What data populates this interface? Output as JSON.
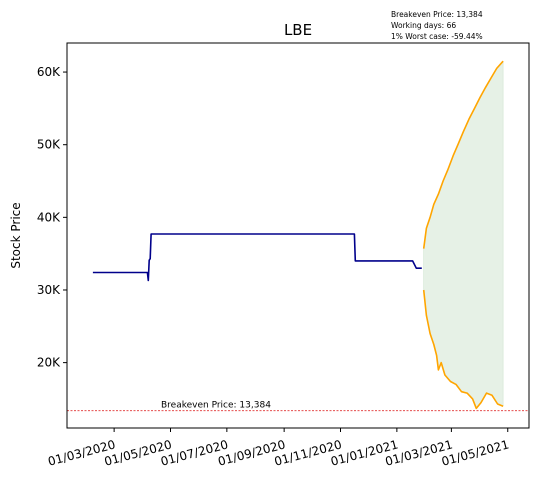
{
  "chart_data": {
    "type": "line",
    "title": "LBE",
    "ylabel": "Stock Price",
    "xlabel": "",
    "annotation_lines": [
      "Breakeven Price: 13,384",
      "Working days: 66",
      "1% Worst case: -59.44%"
    ],
    "breakeven": {
      "value": 13384,
      "label": "Breakeven Price: 13,384"
    },
    "x_range": [
      "2020-01-10",
      "2021-05-24"
    ],
    "ylim": [
      11000,
      64000
    ],
    "x_ticks": [
      {
        "date": "2020-03-01",
        "label": "01/03/2020"
      },
      {
        "date": "2020-05-01",
        "label": "01/05/2020"
      },
      {
        "date": "2020-07-01",
        "label": "01/07/2020"
      },
      {
        "date": "2020-09-01",
        "label": "01/09/2020"
      },
      {
        "date": "2020-11-01",
        "label": "01/11/2020"
      },
      {
        "date": "2021-01-01",
        "label": "01/01/2021"
      },
      {
        "date": "2021-03-01",
        "label": "01/03/2021"
      },
      {
        "date": "2021-05-01",
        "label": "01/05/2021"
      }
    ],
    "y_ticks": [
      {
        "value": 20000,
        "label": "20K"
      },
      {
        "value": 30000,
        "label": "30K"
      },
      {
        "value": 40000,
        "label": "40K"
      },
      {
        "value": 50000,
        "label": "50K"
      },
      {
        "value": 60000,
        "label": "60K"
      }
    ],
    "series": [
      {
        "color": "#00008b",
        "points": [
          [
            "2020-02-07",
            32400
          ],
          [
            "2020-04-06",
            32400
          ],
          [
            "2020-04-07",
            31300
          ],
          [
            "2020-04-08",
            34100
          ],
          [
            "2020-04-09",
            34300
          ],
          [
            "2020-04-10",
            37700
          ],
          [
            "2020-11-16",
            37700
          ],
          [
            "2020-11-17",
            34000
          ],
          [
            "2021-01-18",
            34000
          ],
          [
            "2021-01-22",
            33000
          ],
          [
            "2021-01-28",
            33000
          ]
        ]
      },
      {
        "color": "#ffa500",
        "points": [
          [
            "2021-01-30",
            35700
          ],
          [
            "2021-02-02",
            38500
          ],
          [
            "2021-02-06",
            40000
          ],
          [
            "2021-02-10",
            41800
          ],
          [
            "2021-02-15",
            43200
          ],
          [
            "2021-02-20",
            45000
          ],
          [
            "2021-02-25",
            46500
          ],
          [
            "2021-03-03",
            48500
          ],
          [
            "2021-03-08",
            50000
          ],
          [
            "2021-03-14",
            51800
          ],
          [
            "2021-03-20",
            53500
          ],
          [
            "2021-03-26",
            55000
          ],
          [
            "2021-04-01",
            56500
          ],
          [
            "2021-04-07",
            57900
          ],
          [
            "2021-04-13",
            59200
          ],
          [
            "2021-04-19",
            60500
          ],
          [
            "2021-04-26",
            61500
          ]
        ]
      },
      {
        "color": "#ffa500",
        "points": [
          [
            "2021-01-30",
            30000
          ],
          [
            "2021-02-02",
            26500
          ],
          [
            "2021-02-06",
            24000
          ],
          [
            "2021-02-10",
            22500
          ],
          [
            "2021-02-13",
            21000
          ],
          [
            "2021-02-15",
            19000
          ],
          [
            "2021-02-18",
            20000
          ],
          [
            "2021-02-22",
            18300
          ],
          [
            "2021-02-28",
            17400
          ],
          [
            "2021-03-06",
            17000
          ],
          [
            "2021-03-12",
            16000
          ],
          [
            "2021-03-18",
            15800
          ],
          [
            "2021-03-24",
            15000
          ],
          [
            "2021-03-28",
            13700
          ],
          [
            "2021-04-02",
            14500
          ],
          [
            "2021-04-08",
            15800
          ],
          [
            "2021-04-14",
            15500
          ],
          [
            "2021-04-20",
            14300
          ],
          [
            "2021-04-26",
            14000
          ]
        ]
      }
    ],
    "band_color": "#2e8b2e",
    "breakeven_color": "#e03030"
  }
}
